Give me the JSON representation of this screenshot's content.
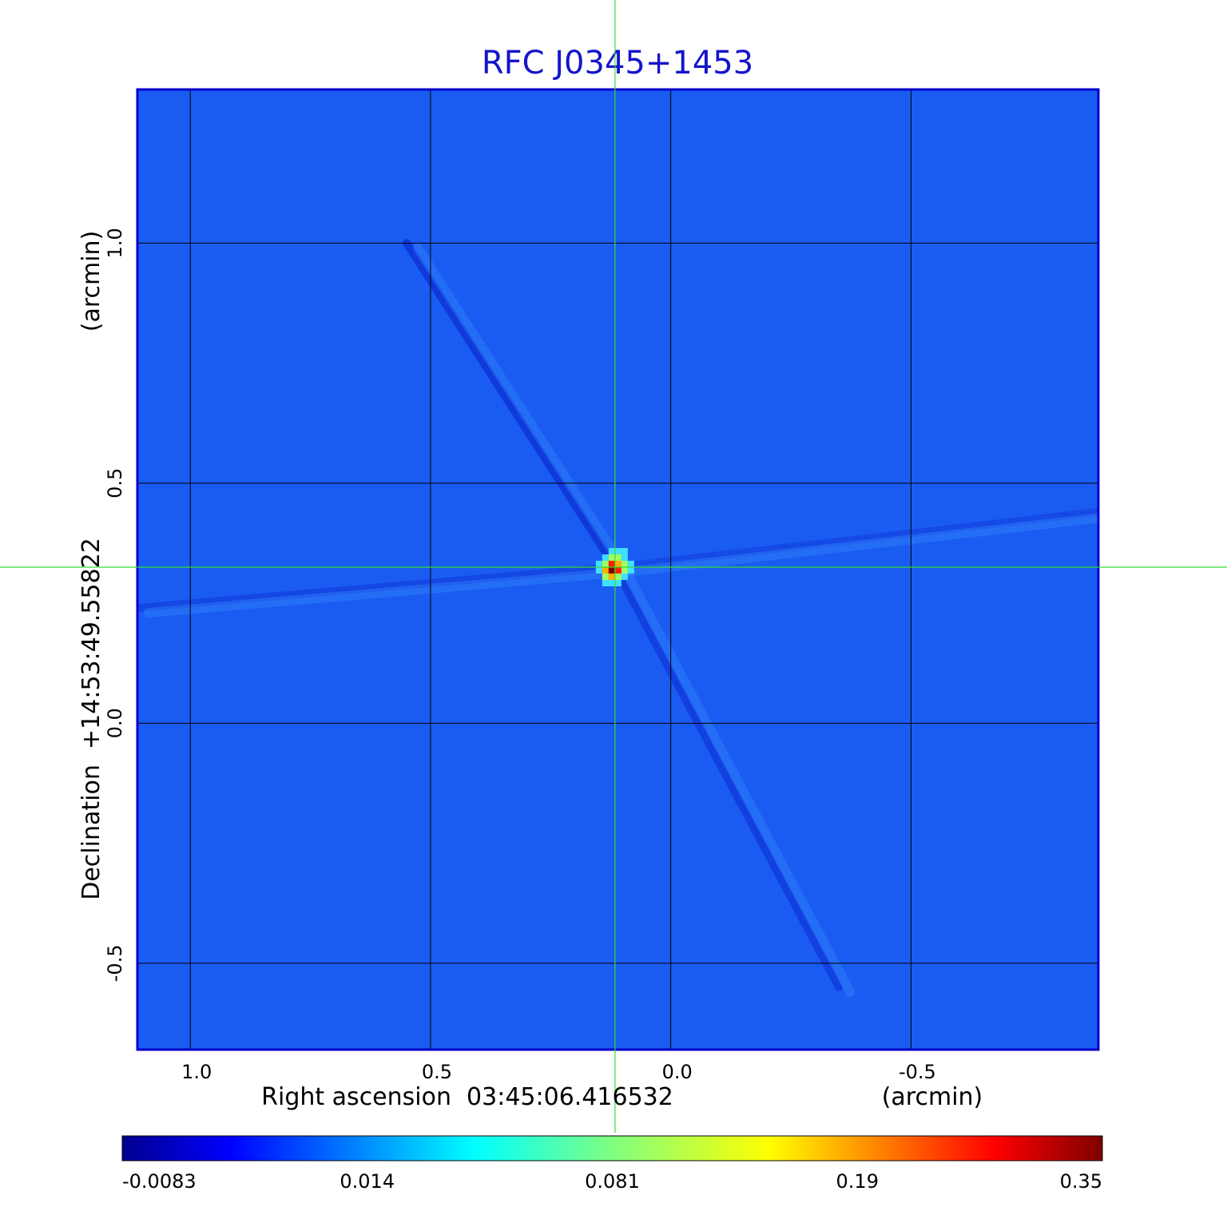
{
  "chart_data": {
    "type": "heatmap",
    "title": "RFC J0345+1453",
    "xlabel": "Right ascension  03:45:06.416532",
    "xlabel_unit": "(arcmin)",
    "ylabel": "Declination  +14:53:49.55822",
    "ylabel_unit": "(arcmin)",
    "x_ticks": [
      {
        "value": 1.0,
        "label": "1.0"
      },
      {
        "value": 0.5,
        "label": "0.5"
      },
      {
        "value": 0.0,
        "label": "0.0"
      },
      {
        "value": -0.5,
        "label": "-0.5"
      }
    ],
    "y_ticks": [
      {
        "value": 1.0,
        "label": "1.0"
      },
      {
        "value": 0.5,
        "label": "0.5"
      },
      {
        "value": 0.0,
        "label": "0.0"
      },
      {
        "value": -0.5,
        "label": "-0.5"
      }
    ],
    "xlim": [
      1.11,
      -0.89
    ],
    "ylim": [
      -0.68,
      1.32
    ],
    "x_reversed": true,
    "grid": true,
    "colormap": "jet",
    "colorbar": {
      "position": "bottom",
      "ticks": [
        "-0.0083",
        "0.014",
        "0.081",
        "0.19",
        "0.35"
      ],
      "range": [
        -0.0083,
        0.35
      ]
    },
    "crosshair": {
      "x": 0.116,
      "y": 0.325,
      "color": "#33dd33"
    },
    "peak": {
      "x": 0.116,
      "y": 0.325,
      "value": 0.35
    },
    "streaks": [
      {
        "from": [
          0.116,
          0.325
        ],
        "to": [
          0.55,
          1.0
        ],
        "strength": -1.0
      },
      {
        "from": [
          0.116,
          0.325
        ],
        "to": [
          1.11,
          0.24
        ],
        "strength": -0.6
      },
      {
        "from": [
          0.116,
          0.325
        ],
        "to": [
          -0.89,
          0.44
        ],
        "strength": -0.5
      },
      {
        "from": [
          0.116,
          0.325
        ],
        "to": [
          -0.35,
          -0.55
        ],
        "strength": -0.8
      }
    ],
    "colors": {
      "background": "#1a5cf2",
      "title": "#1414cc",
      "grid": "#000000",
      "frame": "#0000cc"
    }
  }
}
